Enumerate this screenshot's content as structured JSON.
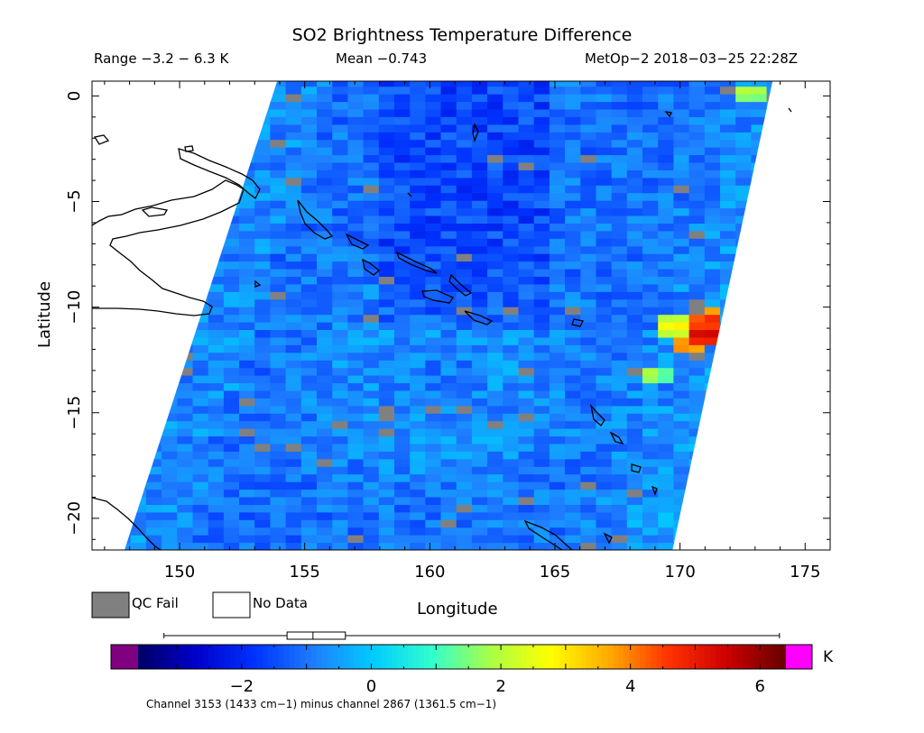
{
  "chart_data": {
    "type": "heatmap",
    "title": "SO2 Brightness Temperature Difference",
    "subtitle": {
      "range": "Range −3.2 − 6.3 K",
      "mean": "Mean −0.743",
      "satellite_time": "MetOp−2 2018−03−25 22:28Z"
    },
    "xlabel": "Longitude",
    "ylabel": "Latitude",
    "xlim": [
      146.5,
      176
    ],
    "ylim": [
      -21.5,
      0.7
    ],
    "xticks": [
      150,
      155,
      160,
      165,
      170,
      175
    ],
    "yticks": [
      0,
      -5,
      -10,
      -15,
      -20
    ],
    "swath": {
      "top_left": [
        153.9,
        0.7
      ],
      "top_right": [
        173.7,
        0.7
      ],
      "bottom_left": [
        147.8,
        -21.5
      ],
      "bottom_right": [
        169.7,
        -21.5
      ]
    },
    "hotspots": [
      {
        "lon": 171.0,
        "lat": -11.3,
        "value": 6.0
      },
      {
        "lon": 171.1,
        "lat": -10.6,
        "value": 5.2
      },
      {
        "lon": 170.3,
        "lat": -11.8,
        "value": 4.6
      },
      {
        "lon": 169.8,
        "lat": -10.9,
        "value": 3.4
      },
      {
        "lon": 172.8,
        "lat": 0.2,
        "value": 2.6
      },
      {
        "lon": 168.9,
        "lat": -13.2,
        "value": 2.4
      }
    ],
    "colorbar": {
      "unit": "K",
      "min": -3.6,
      "max": 6.4,
      "ticks": [
        -2,
        0,
        2,
        4,
        6
      ],
      "tick_labels": [
        "−2",
        "0",
        "2",
        "4",
        "6"
      ],
      "colors": [
        "#000066",
        "#0000cc",
        "#0033ff",
        "#1f7fff",
        "#00ccff",
        "#33ffcc",
        "#aaff44",
        "#ffff00",
        "#ffaa00",
        "#ff3300",
        "#cc0000",
        "#660000"
      ],
      "under_color": "#800080",
      "over_color": "#ff00ff",
      "boxplot": {
        "whisker_min": -3.2,
        "q1": -1.3,
        "median": -0.9,
        "q3": -0.4,
        "whisker_max": 6.3
      }
    },
    "legend": [
      {
        "label": "QC Fail",
        "color": "#808080"
      },
      {
        "label": "No Data",
        "color": "#ffffff"
      }
    ],
    "footer": "Channel 3153 (1433 cm−1) minus channel 2867 (1361.5 cm−1)"
  }
}
